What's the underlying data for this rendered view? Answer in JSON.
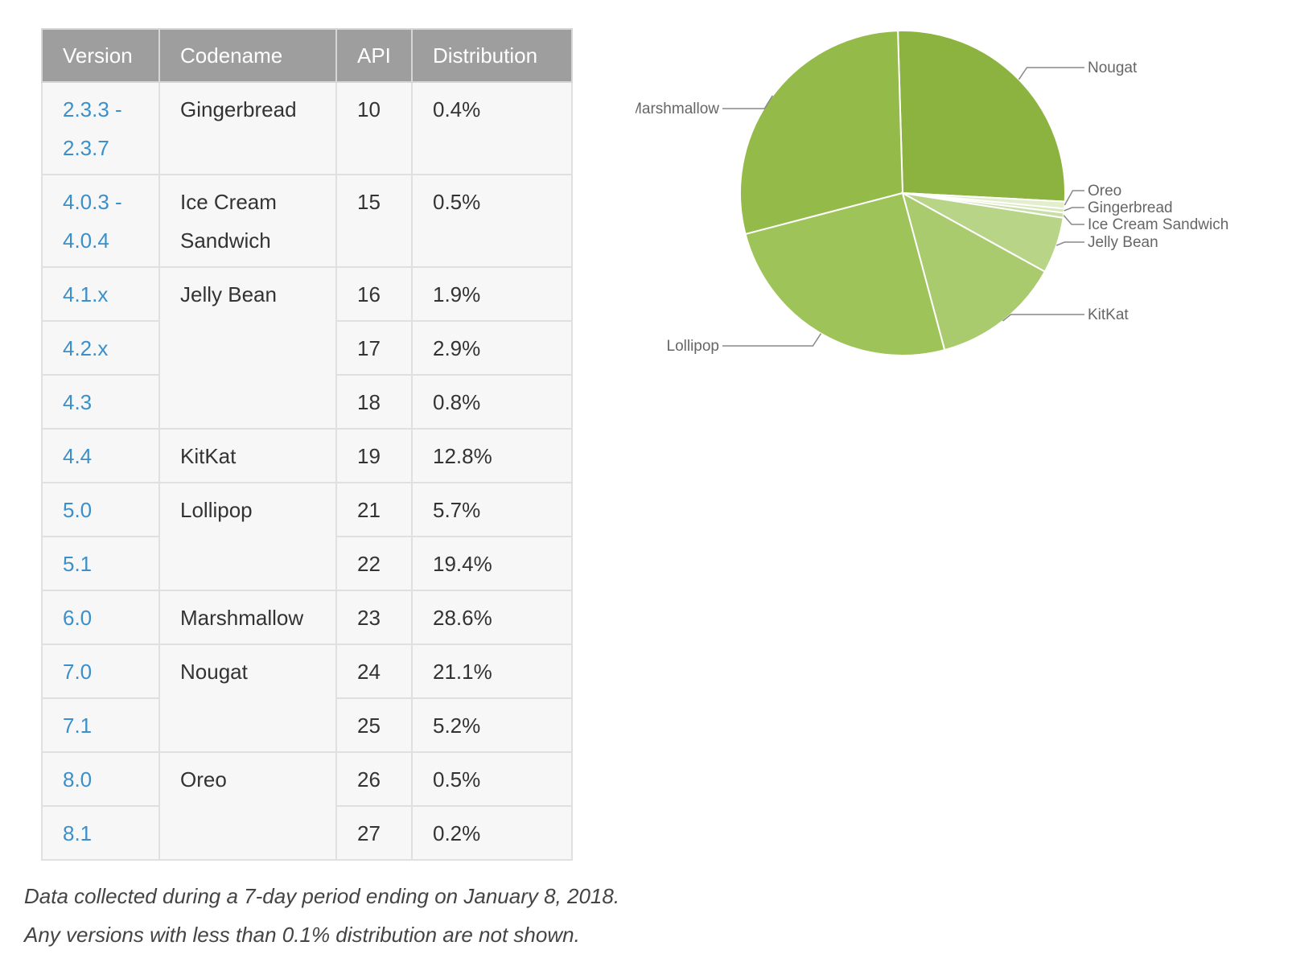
{
  "table": {
    "headers": [
      "Version",
      "Codename",
      "API",
      "Distribution"
    ],
    "groups": [
      {
        "codename": "Gingerbread",
        "rows": [
          {
            "version": "2.3.3 - 2.3.7",
            "api": "10",
            "distribution": "0.4%"
          }
        ]
      },
      {
        "codename": "Ice Cream Sandwich",
        "rows": [
          {
            "version": "4.0.3 - 4.0.4",
            "api": "15",
            "distribution": "0.5%"
          }
        ]
      },
      {
        "codename": "Jelly Bean",
        "rows": [
          {
            "version": "4.1.x",
            "api": "16",
            "distribution": "1.9%"
          },
          {
            "version": "4.2.x",
            "api": "17",
            "distribution": "2.9%"
          },
          {
            "version": "4.3",
            "api": "18",
            "distribution": "0.8%"
          }
        ]
      },
      {
        "codename": "KitKat",
        "rows": [
          {
            "version": "4.4",
            "api": "19",
            "distribution": "12.8%"
          }
        ]
      },
      {
        "codename": "Lollipop",
        "rows": [
          {
            "version": "5.0",
            "api": "21",
            "distribution": "5.7%"
          },
          {
            "version": "5.1",
            "api": "22",
            "distribution": "19.4%"
          }
        ]
      },
      {
        "codename": "Marshmallow",
        "rows": [
          {
            "version": "6.0",
            "api": "23",
            "distribution": "28.6%"
          }
        ]
      },
      {
        "codename": "Nougat",
        "rows": [
          {
            "version": "7.0",
            "api": "24",
            "distribution": "21.1%"
          },
          {
            "version": "7.1",
            "api": "25",
            "distribution": "5.2%"
          }
        ]
      },
      {
        "codename": "Oreo",
        "rows": [
          {
            "version": "8.0",
            "api": "26",
            "distribution": "0.5%"
          },
          {
            "version": "8.1",
            "api": "27",
            "distribution": "0.2%"
          }
        ]
      }
    ]
  },
  "footnotes": [
    "Data collected during a 7-day period ending on January 8, 2018.",
    "Any versions with less than 0.1% distribution are not shown."
  ],
  "chart_data": {
    "type": "pie",
    "start_angle_deg": -3,
    "direction": "counterclockwise",
    "slices": [
      {
        "label": "Nougat",
        "value": 26.3,
        "color": "#8cb23f"
      },
      {
        "label": "Marshmallow",
        "value": 28.6,
        "color": "#94ba4a"
      },
      {
        "label": "Lollipop",
        "value": 25.1,
        "color": "#9ec359"
      },
      {
        "label": "KitKat",
        "value": 12.8,
        "color": "#a9cb6e"
      },
      {
        "label": "Jelly Bean",
        "value": 5.6,
        "color": "#b8d487"
      },
      {
        "label": "Ice Cream Sandwich",
        "value": 0.5,
        "color": "#c9dea4"
      },
      {
        "label": "Gingerbread",
        "value": 0.4,
        "color": "#d6e7b8"
      },
      {
        "label": "Oreo",
        "value": 0.7,
        "color": "#e3efcc"
      }
    ]
  }
}
